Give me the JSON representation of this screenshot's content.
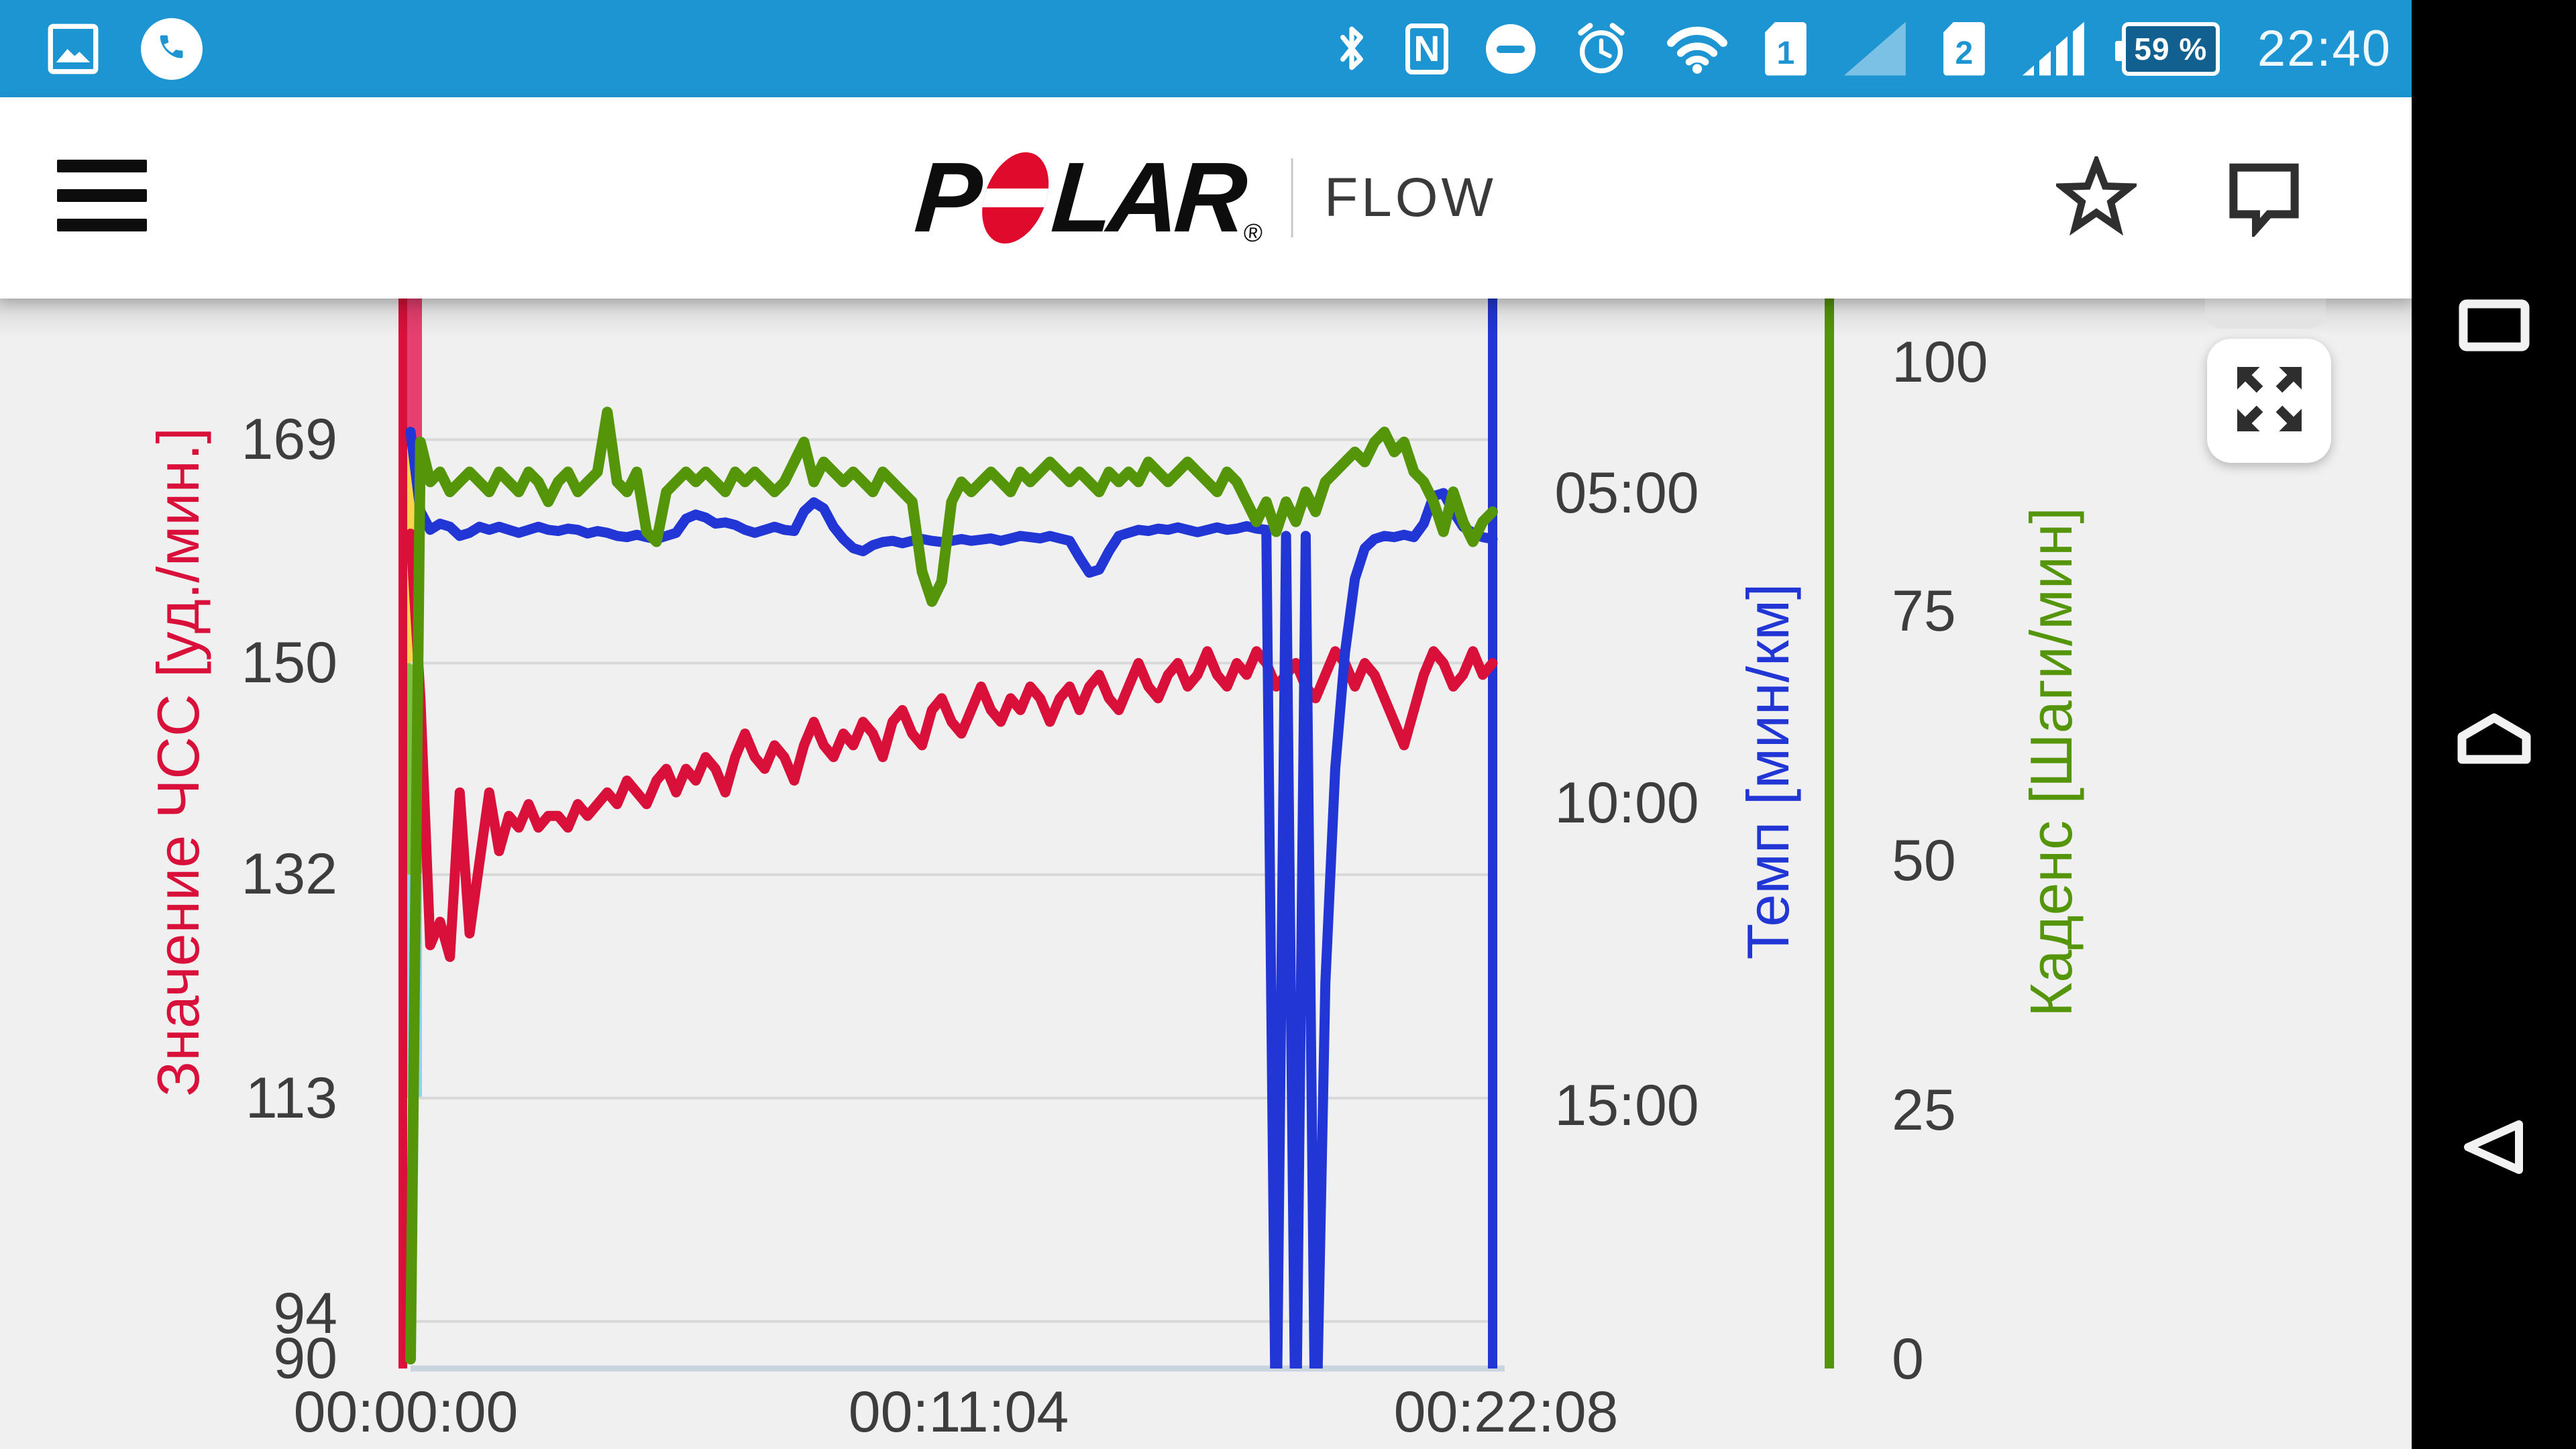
{
  "status_bar": {
    "bg_color": "#1c95d2",
    "time": "22:40",
    "battery_percent": "59 %",
    "sim1_label": "1",
    "sim2_label": "2",
    "icons": [
      "gallery",
      "call",
      "bluetooth",
      "nfc",
      "do-not-disturb",
      "alarm",
      "wifi",
      "sim-1",
      "signal-weak",
      "sim-2",
      "signal-full",
      "battery"
    ]
  },
  "header": {
    "brand_part1": "P",
    "brand_part2": "LAR",
    "registered_mark": "®",
    "app_name": "FLOW",
    "icons": [
      "menu",
      "favorite-star",
      "comment-bubble"
    ],
    "brand_red": "#e00b2c"
  },
  "nav_bar": {
    "icons": [
      "recents",
      "home",
      "back"
    ]
  },
  "chart_panel": {
    "icons": [
      "fullscreen-expand"
    ]
  },
  "chart_data": {
    "type": "line",
    "title": "",
    "sampling": "uniform over total duration",
    "x_axis": {
      "tick_labels": [
        "00:00:00",
        "00:11:04",
        "00:22:08"
      ],
      "total_seconds": 1328,
      "grid": false
    },
    "axes": {
      "heart_rate": {
        "label": "Значение ЧСС [уд./мин.]",
        "tick_labels": [
          "169",
          "150",
          "132",
          "113",
          "94",
          "90"
        ],
        "ticks": [
          169,
          150,
          132,
          113,
          94,
          90
        ],
        "range_top": 181,
        "range_bottom": 90,
        "color": "#d8103a",
        "side": "left",
        "grid": true
      },
      "pace": {
        "label": "Темп [мин/км]",
        "tick_labels": [
          "05:00",
          "10:00",
          "15:00"
        ],
        "tick_minutes": [
          5,
          10,
          15
        ],
        "inverted": true,
        "color": "#2136d4",
        "side": "right"
      },
      "cadence": {
        "label": "Каденс [Шаги/мин]",
        "tick_labels": [
          "100",
          "75",
          "50",
          "25",
          "0"
        ],
        "ticks": [
          100,
          75,
          50,
          25,
          0
        ],
        "range": [
          0,
          106
        ],
        "color": "#55950a",
        "side": "right"
      }
    },
    "zone_bands": [
      {
        "zone": "zone-5",
        "color": "#e73f6f",
        "hr_from": 169,
        "hr_to": 181
      },
      {
        "zone": "zone-4",
        "color": "#fbd34d",
        "hr_from": 150,
        "hr_to": 169
      },
      {
        "zone": "zone-3",
        "color": "#7cc142",
        "hr_from": 132,
        "hr_to": 150
      },
      {
        "zone": "zone-2",
        "color": "#8dd3f4",
        "hr_from": 113,
        "hr_to": 132
      }
    ],
    "series": [
      {
        "name": "heart_rate",
        "unit": "уд./мин.",
        "color": "#d8103a",
        "stroke": 15,
        "values": [
          161,
          147,
          126,
          128,
          125,
          139,
          127,
          133,
          139,
          134,
          137,
          136,
          138,
          136,
          137,
          137,
          136,
          138,
          137,
          138,
          139,
          138,
          140,
          139,
          138,
          140,
          141,
          139,
          141,
          140,
          142,
          141,
          139,
          142,
          144,
          142,
          141,
          143,
          142,
          140,
          143,
          145,
          143,
          142,
          144,
          143,
          145,
          144,
          142,
          145,
          146,
          144,
          143,
          146,
          147,
          145,
          144,
          146,
          148,
          146,
          145,
          147,
          146,
          148,
          147,
          145,
          147,
          148,
          146,
          148,
          149,
          147,
          146,
          148,
          150,
          148,
          147,
          149,
          150,
          148,
          149,
          151,
          149,
          148,
          150,
          149,
          151,
          150,
          148,
          149,
          150,
          148,
          147,
          149,
          151,
          150,
          148,
          150,
          149,
          147,
          145,
          143,
          146,
          149,
          151,
          150,
          148,
          149,
          151,
          149,
          150
        ]
      },
      {
        "name": "pace_min_per_km",
        "unit": "мин/км",
        "color": "#2136d4",
        "stroke": 15,
        "values": [
          4.0,
          5.3,
          5.6,
          5.5,
          5.55,
          5.7,
          5.65,
          5.55,
          5.6,
          5.55,
          5.6,
          5.65,
          5.6,
          5.55,
          5.6,
          5.62,
          5.58,
          5.6,
          5.66,
          5.62,
          5.65,
          5.7,
          5.72,
          5.68,
          5.72,
          5.75,
          5.7,
          5.65,
          5.42,
          5.35,
          5.4,
          5.5,
          5.48,
          5.52,
          5.6,
          5.65,
          5.6,
          5.55,
          5.6,
          5.62,
          5.3,
          5.15,
          5.25,
          5.55,
          5.75,
          5.9,
          5.95,
          5.85,
          5.8,
          5.78,
          5.82,
          5.78,
          5.75,
          5.78,
          5.8,
          5.78,
          5.75,
          5.78,
          5.76,
          5.74,
          5.78,
          5.74,
          5.7,
          5.72,
          5.74,
          5.7,
          5.74,
          5.78,
          6.05,
          6.3,
          6.25,
          5.95,
          5.7,
          5.65,
          5.6,
          5.62,
          5.58,
          5.6,
          5.56,
          5.6,
          5.64,
          5.6,
          5.56,
          5.6,
          5.58,
          5.54,
          5.58,
          5.6,
          21,
          5.7,
          21,
          5.7,
          21,
          13,
          9.5,
          7.6,
          6.4,
          5.9,
          5.75,
          5.7,
          5.72,
          5.68,
          5.72,
          5.5,
          5.05,
          5.0,
          5.3,
          5.55,
          5.65,
          5.72,
          5.75
        ]
      },
      {
        "name": "cadence",
        "unit": "Шаги/мин",
        "color": "#55950a",
        "stroke": 16,
        "values": [
          0,
          92,
          88,
          89,
          87,
          88,
          89,
          88,
          87,
          89,
          88,
          87,
          89,
          88,
          86,
          88,
          89,
          87,
          88,
          89,
          95,
          88,
          87,
          89,
          83,
          82,
          87,
          88,
          89,
          88,
          89,
          88,
          87,
          89,
          88,
          89,
          88,
          87,
          88,
          90,
          92,
          88,
          90,
          89,
          88,
          89,
          88,
          87,
          89,
          88,
          87,
          86,
          79,
          76,
          78,
          86,
          88,
          87,
          88,
          89,
          88,
          87,
          89,
          88,
          89,
          90,
          89,
          88,
          89,
          88,
          87,
          89,
          88,
          89,
          88,
          90,
          89,
          88,
          89,
          90,
          89,
          88,
          87,
          89,
          88,
          86,
          84,
          86,
          83,
          86,
          84,
          87,
          85,
          88,
          89,
          90,
          91,
          90,
          92,
          93,
          91,
          92,
          89,
          88,
          86,
          83,
          87,
          84,
          82,
          84,
          85
        ]
      }
    ],
    "layout_hints": {
      "grid_color": "#d9d9d9",
      "bottom_axis_color": "#c9d4de",
      "plot_bg": "#f0f0f1"
    }
  }
}
